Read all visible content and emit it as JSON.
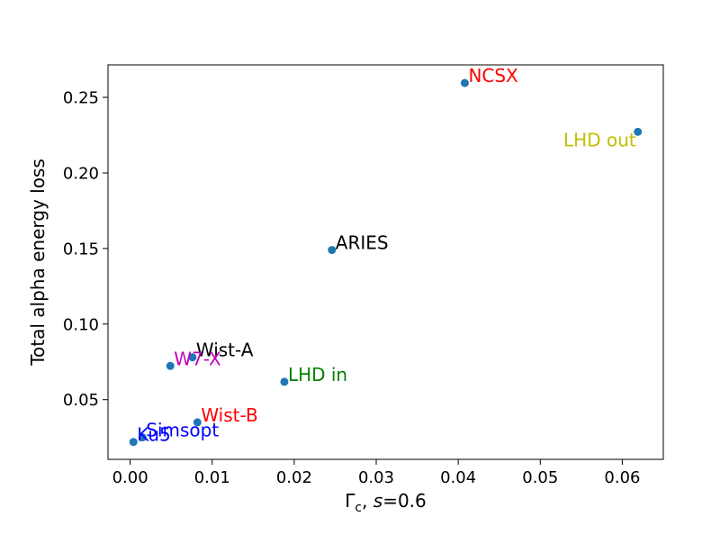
{
  "chart_data": {
    "type": "scatter",
    "title": "",
    "xlabel_main": "Γ",
    "xlabel_sub": "c",
    "xlabel_mid": ", ",
    "xlabel_var": "s",
    "xlabel_tail": "=0.6",
    "ylabel": "Total alpha energy loss",
    "xlim": [
      -0.0027,
      0.065
    ],
    "ylim": [
      0.0105,
      0.2715
    ],
    "xticks": [
      0.0,
      0.01,
      0.02,
      0.03,
      0.04,
      0.05,
      0.06
    ],
    "xtick_labels": [
      "0.00",
      "0.01",
      "0.02",
      "0.03",
      "0.04",
      "0.05",
      "0.06"
    ],
    "yticks": [
      0.05,
      0.1,
      0.15,
      0.2,
      0.25
    ],
    "ytick_labels": [
      "0.05",
      "0.10",
      "0.15",
      "0.20",
      "0.25"
    ],
    "grid": false,
    "marker_color": "#1f77b4",
    "points": [
      {
        "label": "NCSX",
        "x": 0.0408,
        "y": 0.2595,
        "color": "#ff0000",
        "anchor": "start"
      },
      {
        "label": "LHD out",
        "x": 0.0619,
        "y": 0.2272,
        "color": "#bfbf00",
        "anchor": "end"
      },
      {
        "label": "ARIES",
        "x": 0.0246,
        "y": 0.149,
        "color": "#000000",
        "anchor": "start"
      },
      {
        "label": "Wist-A",
        "x": 0.0076,
        "y": 0.078,
        "color": "#000000",
        "anchor": "start"
      },
      {
        "label": "W7-X",
        "x": 0.0049,
        "y": 0.0723,
        "color": "#bf00bf",
        "anchor": "start"
      },
      {
        "label": "LHD in",
        "x": 0.0188,
        "y": 0.0618,
        "color": "#008000",
        "anchor": "start"
      },
      {
        "label": "Wist-B",
        "x": 0.0082,
        "y": 0.035,
        "color": "#ff0000",
        "anchor": "start"
      },
      {
        "label": "Simsopt",
        "x": 0.0015,
        "y": 0.025,
        "color": "#0000ff",
        "anchor": "start"
      },
      {
        "label": "Ku5",
        "x": 0.0004,
        "y": 0.022,
        "color": "#0000ff",
        "anchor": "start"
      }
    ]
  }
}
